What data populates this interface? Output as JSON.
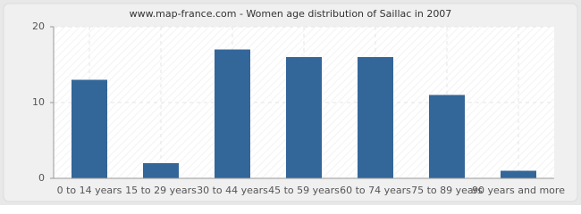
{
  "chart_data": {
    "type": "bar",
    "title": "www.map-france.com - Women age distribution of Saillac in 2007",
    "categories": [
      "0 to 14 years",
      "15 to 29 years",
      "30 to 44 years",
      "45 to 59 years",
      "60 to 74 years",
      "75 to 89 years",
      "90 years and more"
    ],
    "values": [
      13,
      2,
      17,
      16,
      16,
      11,
      1
    ],
    "color": "#336699",
    "ylim": [
      0,
      20
    ],
    "yticks": [
      0,
      10,
      20
    ],
    "grid": true
  }
}
